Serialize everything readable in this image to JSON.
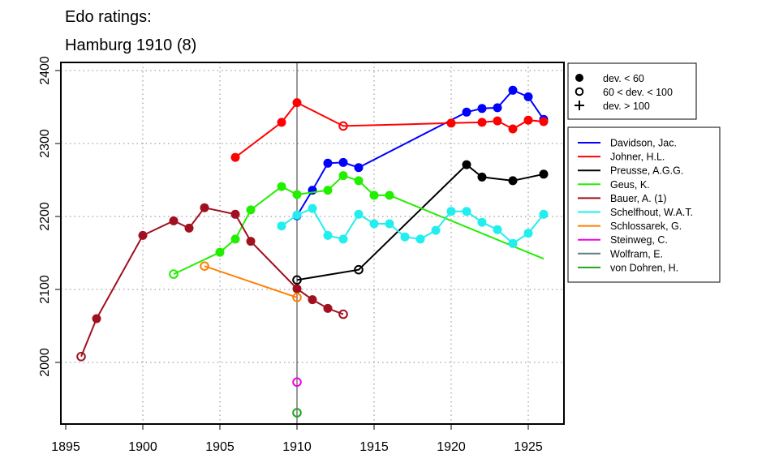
{
  "chart_data": {
    "type": "line",
    "title": [
      "Edo ratings:",
      "Hamburg 1910 (8)"
    ],
    "xlabel": "",
    "ylabel": "",
    "xlim": [
      1894.7,
      1927.3
    ],
    "ylim": [
      1916,
      2412
    ],
    "x_ticks": [
      1895,
      1900,
      1905,
      1910,
      1915,
      1920,
      1925
    ],
    "y_ticks": [
      2000,
      2100,
      2200,
      2300,
      2400
    ],
    "grid": true,
    "reference_year": 1910,
    "marker_legend": [
      {
        "symbol": "filled",
        "label": "dev. < 60"
      },
      {
        "symbol": "open",
        "label": "60 < dev. < 100"
      },
      {
        "symbol": "plus",
        "label": "dev. > 100"
      }
    ],
    "legend_placement": "right",
    "series": [
      {
        "name": "Davidson, Jac.",
        "color": "#0000FF",
        "points": [
          [
            1910,
            2201,
            "f"
          ],
          [
            1911,
            2236,
            "f"
          ],
          [
            1912,
            2273,
            "f"
          ],
          [
            1913,
            2274,
            "f"
          ],
          [
            1914,
            2267,
            "f"
          ],
          [
            1921,
            2343,
            "f"
          ],
          [
            1922,
            2348,
            "f"
          ],
          [
            1923,
            2349,
            "f"
          ],
          [
            1924,
            2373,
            "f"
          ],
          [
            1925,
            2364,
            "f"
          ],
          [
            1926,
            2333,
            "f"
          ]
        ]
      },
      {
        "name": "Johner, H.L.",
        "color": "#FF0000",
        "points": [
          [
            1906,
            2281,
            "f"
          ],
          [
            1909,
            2329,
            "f"
          ],
          [
            1910,
            2356,
            "f"
          ],
          [
            1913,
            2324,
            "o"
          ],
          [
            1920,
            2328,
            "f"
          ],
          [
            1922,
            2329,
            "f"
          ],
          [
            1923,
            2331,
            "f"
          ],
          [
            1924,
            2320,
            "f"
          ],
          [
            1925,
            2332,
            "f"
          ],
          [
            1926,
            2330,
            "f"
          ]
        ]
      },
      {
        "name": "Preusse, A.G.G.",
        "color": "#000000",
        "points": [
          [
            1910,
            2113,
            "o"
          ],
          [
            1914,
            2127,
            "o"
          ],
          [
            1921,
            2271,
            "f"
          ],
          [
            1922,
            2254,
            "f"
          ],
          [
            1924,
            2249,
            "f"
          ],
          [
            1926,
            2258,
            "f"
          ]
        ]
      },
      {
        "name": "Geus, K.",
        "color": "#22EE00",
        "points": [
          [
            1902,
            2121,
            "o"
          ],
          [
            1905,
            2151,
            "f"
          ],
          [
            1906,
            2169,
            "f"
          ],
          [
            1907,
            2209,
            "f"
          ],
          [
            1909,
            2241,
            "f"
          ],
          [
            1910,
            2230,
            "f"
          ],
          [
            1912,
            2236,
            "f"
          ],
          [
            1913,
            2256,
            "f"
          ],
          [
            1914,
            2249,
            "f"
          ],
          [
            1915,
            2229,
            "f"
          ],
          [
            1916,
            2229,
            "f"
          ],
          [
            1926,
            2142,
            "n"
          ]
        ]
      },
      {
        "name": "Bauer, A. (1)",
        "color": "#A0101E",
        "points": [
          [
            1896,
            2008,
            "o"
          ],
          [
            1897,
            2060,
            "f"
          ],
          [
            1900,
            2174,
            "f"
          ],
          [
            1902,
            2194,
            "f"
          ],
          [
            1903,
            2184,
            "f"
          ],
          [
            1904,
            2212,
            "f"
          ],
          [
            1906,
            2203,
            "f"
          ],
          [
            1907,
            2166,
            "f"
          ],
          [
            1910,
            2101,
            "f"
          ],
          [
            1911,
            2086,
            "f"
          ],
          [
            1912,
            2074,
            "f"
          ],
          [
            1913,
            2066,
            "o"
          ]
        ]
      },
      {
        "name": "Schelfhout, W.A.T.",
        "color": "#22EEEE",
        "points": [
          [
            1909,
            2187,
            "f"
          ],
          [
            1910,
            2202,
            "f"
          ],
          [
            1911,
            2211,
            "f"
          ],
          [
            1912,
            2174,
            "f"
          ],
          [
            1913,
            2169,
            "f"
          ],
          [
            1914,
            2203,
            "f"
          ],
          [
            1915,
            2190,
            "f"
          ],
          [
            1916,
            2190,
            "f"
          ],
          [
            1917,
            2172,
            "f"
          ],
          [
            1918,
            2169,
            "f"
          ],
          [
            1919,
            2181,
            "f"
          ],
          [
            1920,
            2207,
            "f"
          ],
          [
            1921,
            2207,
            "f"
          ],
          [
            1922,
            2192,
            "f"
          ],
          [
            1923,
            2182,
            "f"
          ],
          [
            1924,
            2163,
            "f"
          ],
          [
            1925,
            2177,
            "f"
          ],
          [
            1926,
            2203,
            "f"
          ]
        ]
      },
      {
        "name": "Schlossarek, G.",
        "color": "#FF7F00",
        "points": [
          [
            1904,
            2132,
            "o"
          ],
          [
            1910,
            2089,
            "o"
          ]
        ]
      },
      {
        "name": "Steinweg, C.",
        "color": "#EE00EE",
        "points": [
          [
            1910,
            1973,
            "o"
          ]
        ]
      },
      {
        "name": "Wolfram, E.",
        "color": "#5F8080",
        "points": []
      },
      {
        "name": "von Dohren, H.",
        "color": "#1FA51F",
        "points": [
          [
            1910,
            1931,
            "o"
          ]
        ]
      }
    ]
  }
}
